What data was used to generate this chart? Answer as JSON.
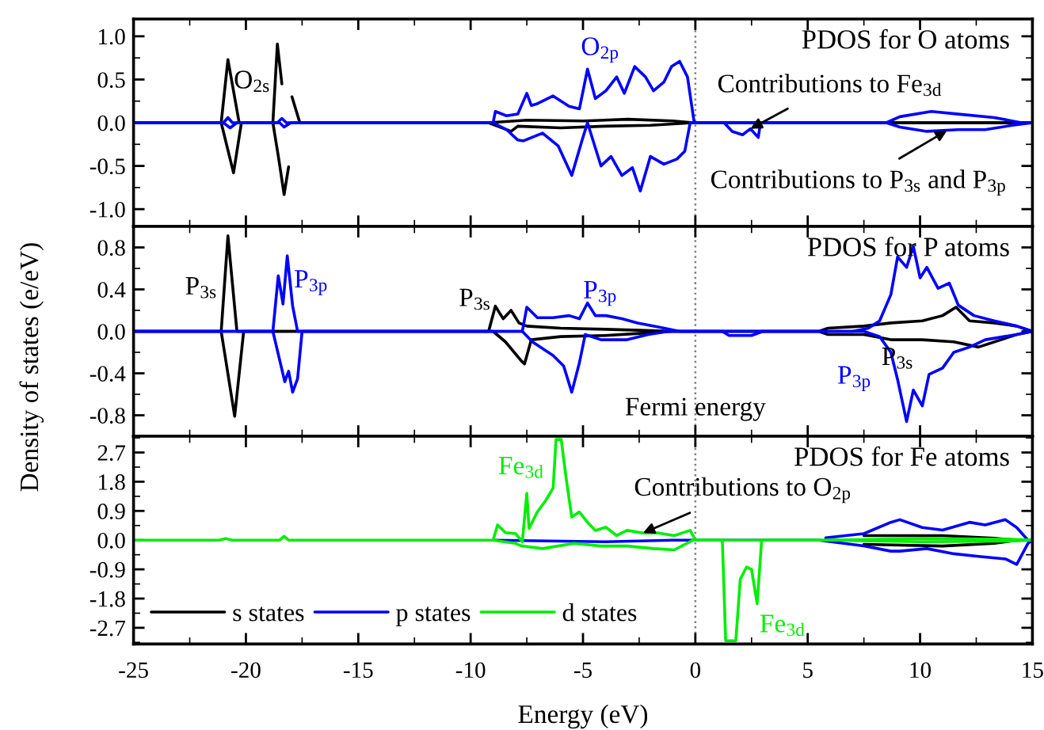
{
  "chart_data": [
    {
      "type": "line",
      "xlim": [
        -25,
        15
      ],
      "xticks": [
        -25,
        -20,
        -15,
        -10,
        -5,
        0,
        5,
        10,
        15
      ],
      "ylim": [
        -1.2,
        1.2
      ],
      "yticks": [
        {
          "value": -1,
          "label": "-1.0"
        },
        -0.5,
        {
          "value": 0,
          "label": "0.0"
        },
        0.5,
        {
          "value": 1,
          "label": "1.0"
        }
      ],
      "tick_labels": "y",
      "series": [
        {
          "color": "#000000",
          "x": [
            -25,
            -21.1,
            -20.8,
            -20.3,
            -18.8,
            -18.6,
            -18.4,
            -18.25,
            -18.15,
            -17.95,
            -17.6,
            -9.2,
            -7.5,
            -5,
            -3,
            -1,
            -0.1,
            15
          ],
          "values": [
            0,
            0,
            0.73,
            0,
            0,
            0.91,
            0.45,
            null,
            null,
            0.3,
            0,
            0,
            0.03,
            0.02,
            0.04,
            0.02,
            0,
            0
          ]
        },
        {
          "color": "#000000",
          "x": [
            -25,
            -21.1,
            -20.55,
            -20.2,
            -18.8,
            -18.55,
            -18.3,
            -18.1,
            -17.95,
            -17.75,
            -17.6,
            -9.2,
            -8.2,
            -7.9,
            -6,
            -4,
            -2,
            -0.1,
            15
          ],
          "values": [
            0,
            0,
            -0.58,
            0,
            0,
            -0.4,
            -0.83,
            -0.51,
            null,
            null,
            0,
            0,
            -0.1,
            -0.04,
            -0.06,
            -0.04,
            -0.03,
            0,
            0
          ]
        },
        {
          "color": "#0000ff",
          "x": [
            -25,
            -21.0,
            -20.8,
            -20.6,
            -18.6,
            -18.4,
            -18.2,
            -9.0,
            -8.9,
            -8.4,
            -7.9,
            -7.5,
            -7.3,
            -7.03,
            -6.33,
            -5.62,
            -5.16,
            -4.8,
            -4.45,
            -3.98,
            -3.5,
            -3.16,
            -2.7,
            -2.22,
            -1.86,
            -1.4,
            -1.06,
            -0.7,
            -0.35,
            -0.05,
            8.5,
            9.1,
            10.5,
            11.7,
            13.3,
            14.5,
            15
          ],
          "values": [
            0,
            0,
            0.06,
            0,
            0,
            0.05,
            0,
            0,
            0.13,
            0.08,
            0.1,
            0.34,
            0.2,
            0.22,
            0.31,
            0.19,
            0.16,
            0.62,
            0.28,
            0.37,
            0.53,
            0.34,
            0.65,
            0.53,
            0.37,
            0.47,
            0.65,
            0.71,
            0.53,
            0,
            0,
            0.07,
            0.13,
            0.1,
            0.06,
            0,
            0
          ]
        },
        {
          "color": "#0000ff",
          "x": [
            -25,
            -21.0,
            -20.7,
            -20.4,
            -18.5,
            -18.3,
            -18.0,
            -9.0,
            -8.4,
            -7.9,
            -7.65,
            -6.8,
            -6.1,
            -5.5,
            -5.05,
            -4.8,
            -4.2,
            -3.75,
            -3.27,
            -2.8,
            -2.45,
            -2.0,
            -1.4,
            -0.82,
            -0.47,
            -0.23,
            1.28,
            1.64,
            2.1,
            2.45,
            2.8,
            2.9,
            8.5,
            9.1,
            10.3,
            11.7,
            12.9,
            14.1,
            15
          ],
          "values": [
            0,
            0,
            -0.06,
            0,
            0,
            -0.05,
            0,
            0,
            -0.08,
            -0.2,
            -0.21,
            -0.12,
            -0.27,
            -0.61,
            -0.21,
            0,
            -0.5,
            -0.39,
            -0.61,
            -0.52,
            -0.79,
            -0.39,
            -0.48,
            -0.42,
            -0.33,
            0,
            0,
            -0.1,
            -0.14,
            -0.07,
            -0.17,
            0,
            0,
            -0.05,
            -0.1,
            -0.08,
            -0.08,
            -0.03,
            0
          ]
        }
      ],
      "ref_lines": [
        {
          "axis": "x",
          "value": 0,
          "line_style": "dotted",
          "color": "#808080"
        }
      ],
      "annotations": [
        "PDOS for O atoms",
        {
          "text": "O$_{2s}$",
          "x": -18.6,
          "y": 0.91
        },
        {
          "text": "O$_{2p}$",
          "x": -4.8,
          "y": 0.62
        },
        {
          "text": "Contributions to Fe$_{3d}$",
          "x": 2.45,
          "y": -0.07
        },
        {
          "text": "Contributions to P$_{3s}$ and P$_{3p}$",
          "x": 11.2,
          "y": -0.09
        }
      ]
    },
    {
      "type": "line",
      "xlim": [
        -25,
        15
      ],
      "xticks": [
        -25,
        -20,
        -15,
        -10,
        -5,
        0,
        5,
        10,
        15
      ],
      "ylim": [
        -1.0,
        1.0
      ],
      "yticks": [
        -0.8,
        -0.4,
        {
          "value": 0,
          "label": "0.0"
        },
        0.4,
        0.8
      ],
      "tick_labels": "y",
      "ylabel": "Density of states (e/eV)",
      "series": [
        {
          "color": "#000000",
          "x": [
            -25,
            -21.1,
            -20.8,
            -20.4,
            -9.2,
            -8.9,
            -8.55,
            -8.2,
            -7.85,
            -7.5,
            -6,
            -4,
            -2.5,
            -1,
            5.5,
            5.9,
            7.5,
            8.7,
            10.1,
            11.0,
            11.6,
            12.2,
            13.3,
            14.3,
            15
          ],
          "values": [
            0,
            0,
            0.91,
            0,
            0,
            0.24,
            0.12,
            0.2,
            0.08,
            0.05,
            0.03,
            0.02,
            0.01,
            0,
            0,
            0.03,
            0.05,
            0.08,
            0.1,
            0.15,
            0.23,
            0.1,
            0.08,
            0.05,
            0
          ]
        },
        {
          "color": "#000000",
          "x": [
            -25,
            -21.1,
            -20.5,
            -20.1,
            -9.0,
            -8.45,
            -7.75,
            -7.6,
            -7.3,
            -6,
            -4,
            -2.5,
            -1,
            5.5,
            5.9,
            7.5,
            8.7,
            10.1,
            11.5,
            12.6,
            14.3,
            15
          ],
          "values": [
            0,
            0,
            -0.81,
            0,
            0,
            -0.1,
            -0.28,
            -0.31,
            -0.08,
            -0.05,
            -0.04,
            -0.02,
            0,
            0,
            -0.03,
            -0.03,
            -0.08,
            -0.08,
            -0.1,
            -0.15,
            -0.03,
            0
          ]
        },
        {
          "color": "#0000ff",
          "x": [
            -25,
            -18.8,
            -18.56,
            -18.35,
            -18.16,
            -17.92,
            -17.7,
            -7.7,
            -7.5,
            -7.03,
            -6.33,
            -5.62,
            -5.16,
            -4.8,
            -4.45,
            -3.98,
            -3.27,
            -2.57,
            -1.6,
            -0.7,
            7.0,
            7.7,
            8.2,
            8.7,
            9.0,
            9.4,
            9.7,
            10.0,
            10.3,
            10.8,
            11.3,
            11.7,
            12.4,
            13.3,
            14.3,
            15
          ],
          "values": [
            0,
            0,
            0.53,
            0.26,
            0.72,
            0.24,
            0,
            0,
            0.23,
            0.13,
            0.13,
            0.15,
            0.12,
            0.27,
            0.15,
            0.15,
            0.12,
            0.08,
            0.04,
            0,
            0,
            0.03,
            0.1,
            0.35,
            0.71,
            0.61,
            0.81,
            0.51,
            0.61,
            0.41,
            0.46,
            0.25,
            0.15,
            0.1,
            0.05,
            0
          ]
        },
        {
          "color": "#0000ff",
          "x": [
            -25,
            -18.8,
            -18.27,
            -18.1,
            -17.92,
            -17.7,
            -17.5,
            -7.7,
            -7.25,
            -6.33,
            -5.86,
            -5.5,
            -5.16,
            -4.9,
            -4.2,
            -3.04,
            -2.1,
            -1.2,
            1.2,
            1.5,
            2.5,
            3.0,
            7.5,
            8.2,
            8.7,
            9.0,
            9.4,
            9.7,
            10.1,
            10.4,
            11.0,
            11.5,
            12.2,
            12.9,
            14.3,
            15
          ],
          "values": [
            0,
            0,
            -0.48,
            -0.38,
            -0.58,
            -0.45,
            0,
            0,
            -0.1,
            -0.23,
            -0.33,
            -0.58,
            -0.3,
            -0.03,
            -0.08,
            -0.08,
            -0.03,
            0,
            0,
            -0.04,
            -0.04,
            0,
            0,
            -0.05,
            -0.2,
            -0.46,
            -0.86,
            -0.56,
            -0.71,
            -0.41,
            -0.35,
            -0.2,
            -0.15,
            -0.08,
            -0.03,
            0
          ]
        }
      ],
      "ref_lines": [
        {
          "axis": "x",
          "value": 0,
          "line_style": "dotted",
          "color": "#808080",
          "label": "Fermi energy"
        }
      ],
      "annotations": [
        "PDOS for P atoms",
        {
          "text": "P$_{3s}$",
          "x": -20.8,
          "y": 0.91
        },
        {
          "text": "P$_{3p}$",
          "x": -18.16,
          "y": 0.72
        },
        {
          "text": "P$_{3s}$",
          "x": -8.9,
          "y": 0.24
        },
        {
          "text": "P$_{3p}$",
          "x": -4.8,
          "y": 0.27
        },
        {
          "text": "P$_{3s}$",
          "x": 10.4,
          "y": -0.08
        },
        {
          "text": "P$_{3p}$",
          "x": 9.4,
          "y": -0.86
        }
      ]
    },
    {
      "type": "line",
      "xlim": [
        -25,
        15
      ],
      "xticks": [
        -25,
        -20,
        -15,
        -10,
        -5,
        0,
        5,
        10,
        15
      ],
      "ylim": [
        -3.2,
        3.2
      ],
      "yticks": [
        -2.7,
        -1.8,
        -0.9,
        {
          "value": 0,
          "label": "0.0"
        },
        0.9,
        1.8,
        2.7
      ],
      "xlabel": "Energy (eV)",
      "legend": "bottom left",
      "series": [
        {
          "name": "s states",
          "color": "#000000",
          "x": [
            7.5,
            9.1,
            11.0,
            13.3,
            14.3
          ],
          "values": [
            0.14,
            0.14,
            0.14,
            0.06,
            0
          ]
        },
        {
          "color": "#000000",
          "x": [
            7.5,
            11.0,
            13.3,
            14.3
          ],
          "values": [
            -0.13,
            -0.18,
            -0.1,
            0
          ]
        },
        {
          "name": "p states",
          "color": "#0000ff",
          "x": [
            5.8,
            7.5,
            8.7,
            9.1,
            10.1,
            11.0,
            12.2,
            12.9,
            13.8,
            14.3,
            14.8,
            15
          ],
          "values": [
            0.07,
            0.2,
            0.55,
            0.63,
            0.39,
            0.31,
            0.55,
            0.47,
            0.63,
            0.39,
            0,
            0
          ]
        },
        {
          "color": "#0000ff",
          "x": [
            -9,
            -4,
            -1,
            5.5,
            7.5,
            8.7,
            9.1,
            10.3,
            11.5,
            12.6,
            13.8,
            14.3,
            14.8,
            15
          ],
          "values": [
            0,
            -0.05,
            0,
            0,
            -0.18,
            -0.34,
            -0.34,
            -0.26,
            -0.42,
            -0.5,
            -0.58,
            -0.75,
            -0.1,
            0
          ]
        },
        {
          "name": "d states",
          "color": "#00ee00",
          "x": [
            -25,
            -21.2,
            -20.9,
            -20.6,
            -18.5,
            -18.3,
            -18.1,
            -9.0,
            -8.8,
            -8.45,
            -8.0,
            -7.7,
            -7.5,
            -7.4,
            -7.03,
            -6.68,
            -6.33,
            -6.2,
            -5.97,
            -5.74,
            -5.5,
            -5.16,
            -4.8,
            -4.45,
            -3.98,
            -3.5,
            -3.04,
            -2.33,
            -1.64,
            -0.94,
            -0.23,
            0,
            6,
            10,
            14,
            15
          ],
          "values": [
            0,
            0,
            0.05,
            0,
            0,
            0.12,
            0,
            0,
            0.47,
            0.23,
            0.2,
            -0.05,
            1.44,
            0.36,
            0.87,
            1.2,
            1.6,
            3.1,
            3.1,
            1.86,
            0.71,
            0.87,
            0.55,
            0.3,
            0.4,
            0.14,
            0.3,
            0.22,
            0.22,
            0.14,
            0.3,
            0,
            0,
            0.05,
            0.03,
            0
          ]
        },
        {
          "color": "#00ee00",
          "x": [
            -9,
            -8,
            -7.73,
            -6.8,
            -5.4,
            -4.2,
            -3.04,
            -1.86,
            -0.94,
            -0.1,
            1.2,
            1.35,
            1.8,
            2.0,
            2.28,
            2.5,
            2.75,
            2.95,
            6,
            10,
            14,
            15
          ],
          "values": [
            0,
            -0.1,
            -0.18,
            -0.26,
            -0.1,
            -0.18,
            -0.18,
            -0.26,
            -0.3,
            0,
            0,
            -3.1,
            -3.1,
            -1.2,
            -0.83,
            -0.9,
            -1.96,
            0,
            0,
            -0.05,
            -0.03,
            0
          ]
        }
      ],
      "ref_lines": [
        {
          "axis": "x",
          "value": 0,
          "line_style": "dotted",
          "color": "#808080"
        }
      ],
      "annotations": [
        "PDOS for Fe atoms",
        {
          "text": "Fe$_{3d}$",
          "x": -6.2,
          "y": 3.1
        },
        {
          "text": "Contributions to O$_{2p}$",
          "x": -2.33,
          "y": 0.22
        },
        {
          "text": "Fe$_{3d}$",
          "x": 2.75,
          "y": -1.96
        }
      ]
    }
  ]
}
